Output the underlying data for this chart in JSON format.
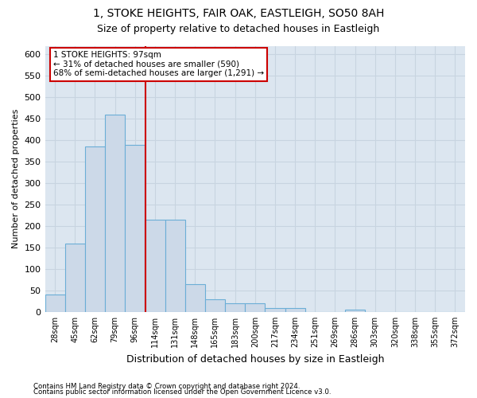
{
  "title": "1, STOKE HEIGHTS, FAIR OAK, EASTLEIGH, SO50 8AH",
  "subtitle": "Size of property relative to detached houses in Eastleigh",
  "xlabel": "Distribution of detached houses by size in Eastleigh",
  "ylabel": "Number of detached properties",
  "footnote1": "Contains HM Land Registry data © Crown copyright and database right 2024.",
  "footnote2": "Contains public sector information licensed under the Open Government Licence v3.0.",
  "bin_labels": [
    "28sqm",
    "45sqm",
    "62sqm",
    "79sqm",
    "96sqm",
    "114sqm",
    "131sqm",
    "148sqm",
    "165sqm",
    "183sqm",
    "200sqm",
    "217sqm",
    "234sqm",
    "251sqm",
    "269sqm",
    "286sqm",
    "303sqm",
    "320sqm",
    "338sqm",
    "355sqm",
    "372sqm"
  ],
  "bar_values": [
    40,
    160,
    385,
    460,
    390,
    215,
    215,
    65,
    30,
    20,
    20,
    10,
    10,
    0,
    0,
    5,
    0,
    0,
    0,
    0,
    0
  ],
  "bar_color": "#ccd9e8",
  "bar_edge_color": "#6baed6",
  "grid_color": "#c8d4e0",
  "background_color": "#dce6f0",
  "vline_x": 4.52,
  "vline_color": "#cc0000",
  "ylim": [
    0,
    620
  ],
  "yticks": [
    0,
    50,
    100,
    150,
    200,
    250,
    300,
    350,
    400,
    450,
    500,
    550,
    600
  ],
  "annotation_title": "1 STOKE HEIGHTS: 97sqm",
  "annotation_line1": "← 31% of detached houses are smaller (590)",
  "annotation_line2": "68% of semi-detached houses are larger (1,291) →",
  "annotation_box_color": "#ffffff",
  "annotation_box_edge": "#cc0000",
  "title_fontsize": 10,
  "subtitle_fontsize": 9
}
